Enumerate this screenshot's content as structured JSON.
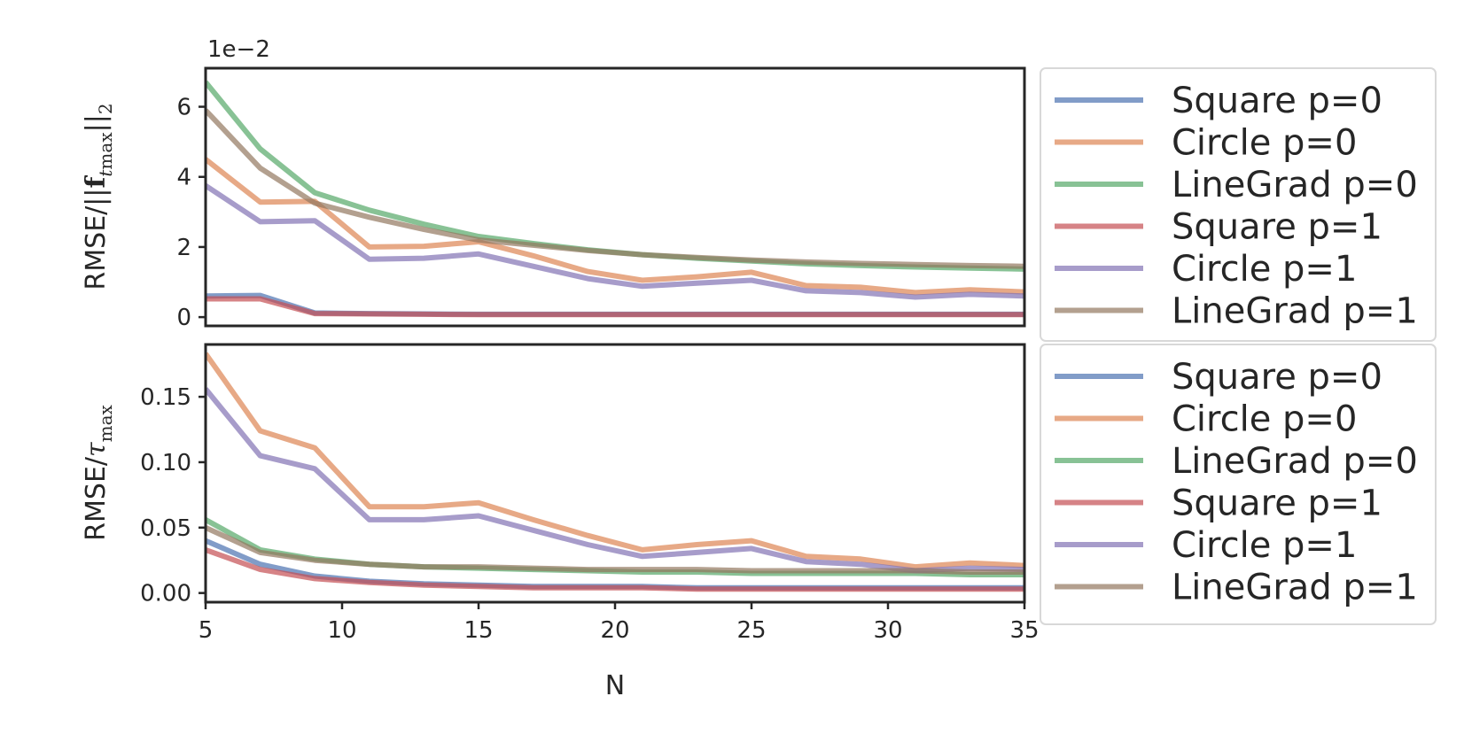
{
  "chart_data": [
    {
      "type": "line",
      "panel": "top",
      "ylabel": {
        "prefix": "RMSE/||",
        "bold": "f",
        "sub1": "t",
        "sub2": "max",
        "suffix": "||",
        "sub3": "2"
      },
      "offset_text": "1e−2",
      "xlim": [
        5,
        35
      ],
      "ylim": [
        -0.25,
        7.1
      ],
      "yticks": [
        0,
        2,
        4,
        6
      ],
      "ytick_labels": [
        "0",
        "2",
        "4",
        "6"
      ],
      "legend_position": "outside-right",
      "series": [
        {
          "name": "Square p=0",
          "color": "#4c72b0",
          "x": [
            5,
            7,
            9,
            11,
            13,
            15,
            17,
            19,
            21,
            23,
            25,
            27,
            29,
            31,
            33,
            35
          ],
          "values": [
            0.6,
            0.62,
            0.12,
            0.1,
            0.09,
            0.08,
            0.08,
            0.08,
            0.08,
            0.08,
            0.08,
            0.08,
            0.08,
            0.08,
            0.08,
            0.08
          ]
        },
        {
          "name": "Circle p=0",
          "color": "#dd8452",
          "x": [
            5,
            7,
            9,
            11,
            13,
            15,
            17,
            19,
            21,
            23,
            25,
            27,
            29,
            31,
            33,
            35
          ],
          "values": [
            4.5,
            3.28,
            3.3,
            2.0,
            2.02,
            2.15,
            1.75,
            1.3,
            1.05,
            1.15,
            1.28,
            0.9,
            0.85,
            0.7,
            0.78,
            0.72
          ]
        },
        {
          "name": "LineGrad p=0",
          "color": "#55a868",
          "x": [
            5,
            7,
            9,
            11,
            13,
            15,
            17,
            19,
            21,
            23,
            25,
            27,
            29,
            31,
            33,
            35
          ],
          "values": [
            6.7,
            4.8,
            3.55,
            3.05,
            2.65,
            2.3,
            2.1,
            1.92,
            1.78,
            1.68,
            1.6,
            1.52,
            1.47,
            1.43,
            1.4,
            1.37
          ]
        },
        {
          "name": "Square p=1",
          "color": "#c44e52",
          "x": [
            5,
            7,
            9,
            11,
            13,
            15,
            17,
            19,
            21,
            23,
            25,
            27,
            29,
            31,
            33,
            35
          ],
          "values": [
            0.52,
            0.52,
            0.1,
            0.09,
            0.08,
            0.07,
            0.07,
            0.07,
            0.07,
            0.07,
            0.07,
            0.07,
            0.07,
            0.07,
            0.07,
            0.07
          ]
        },
        {
          "name": "Circle p=1",
          "color": "#8172b3",
          "x": [
            5,
            7,
            9,
            11,
            13,
            15,
            17,
            19,
            21,
            23,
            25,
            27,
            29,
            31,
            33,
            35
          ],
          "values": [
            3.75,
            2.72,
            2.75,
            1.65,
            1.68,
            1.8,
            1.45,
            1.1,
            0.88,
            0.97,
            1.05,
            0.75,
            0.7,
            0.57,
            0.65,
            0.6
          ]
        },
        {
          "name": "LineGrad p=1",
          "color": "#937860",
          "x": [
            5,
            7,
            9,
            11,
            13,
            15,
            17,
            19,
            21,
            23,
            25,
            27,
            29,
            31,
            33,
            35
          ],
          "values": [
            5.9,
            4.25,
            3.25,
            2.85,
            2.5,
            2.2,
            2.05,
            1.9,
            1.78,
            1.7,
            1.63,
            1.57,
            1.53,
            1.5,
            1.47,
            1.45
          ]
        }
      ]
    },
    {
      "type": "line",
      "panel": "bottom",
      "ylabel": {
        "prefix": "RMSE/",
        "sym": "τ",
        "sub": "max"
      },
      "xlabel": "N",
      "xlim": [
        5,
        35
      ],
      "ylim": [
        -0.007,
        0.19
      ],
      "xticks": [
        5,
        10,
        15,
        20,
        25,
        30,
        35
      ],
      "xtick_labels": [
        "5",
        "10",
        "15",
        "20",
        "25",
        "30",
        "35"
      ],
      "yticks": [
        0.0,
        0.05,
        0.1,
        0.15
      ],
      "ytick_labels": [
        "0.00",
        "0.05",
        "0.10",
        "0.15"
      ],
      "legend_position": "outside-right",
      "series": [
        {
          "name": "Square p=0",
          "color": "#4c72b0",
          "x": [
            5,
            7,
            9,
            11,
            13,
            15,
            17,
            19,
            21,
            23,
            25,
            27,
            29,
            31,
            33,
            35
          ],
          "values": [
            0.04,
            0.022,
            0.013,
            0.009,
            0.007,
            0.006,
            0.005,
            0.005,
            0.005,
            0.004,
            0.004,
            0.004,
            0.004,
            0.004,
            0.004,
            0.004
          ]
        },
        {
          "name": "Circle p=0",
          "color": "#dd8452",
          "x": [
            5,
            7,
            9,
            11,
            13,
            15,
            17,
            19,
            21,
            23,
            25,
            27,
            29,
            31,
            33,
            35
          ],
          "values": [
            0.183,
            0.124,
            0.111,
            0.066,
            0.066,
            0.069,
            0.056,
            0.044,
            0.033,
            0.037,
            0.04,
            0.028,
            0.026,
            0.02,
            0.023,
            0.021
          ]
        },
        {
          "name": "LineGrad p=0",
          "color": "#55a868",
          "x": [
            5,
            7,
            9,
            11,
            13,
            15,
            17,
            19,
            21,
            23,
            25,
            27,
            29,
            31,
            33,
            35
          ],
          "values": [
            0.056,
            0.033,
            0.026,
            0.022,
            0.02,
            0.019,
            0.018,
            0.017,
            0.016,
            0.016,
            0.015,
            0.015,
            0.015,
            0.015,
            0.014,
            0.014
          ]
        },
        {
          "name": "Square p=1",
          "color": "#c44e52",
          "x": [
            5,
            7,
            9,
            11,
            13,
            15,
            17,
            19,
            21,
            23,
            25,
            27,
            29,
            31,
            33,
            35
          ],
          "values": [
            0.033,
            0.018,
            0.011,
            0.008,
            0.006,
            0.005,
            0.004,
            0.004,
            0.004,
            0.003,
            0.003,
            0.003,
            0.003,
            0.003,
            0.003,
            0.003
          ]
        },
        {
          "name": "Circle p=1",
          "color": "#8172b3",
          "x": [
            5,
            7,
            9,
            11,
            13,
            15,
            17,
            19,
            21,
            23,
            25,
            27,
            29,
            31,
            33,
            35
          ],
          "values": [
            0.156,
            0.105,
            0.095,
            0.056,
            0.056,
            0.059,
            0.048,
            0.037,
            0.028,
            0.031,
            0.034,
            0.024,
            0.022,
            0.017,
            0.019,
            0.018
          ]
        },
        {
          "name": "LineGrad p=1",
          "color": "#937860",
          "x": [
            5,
            7,
            9,
            11,
            13,
            15,
            17,
            19,
            21,
            23,
            25,
            27,
            29,
            31,
            33,
            35
          ],
          "values": [
            0.05,
            0.031,
            0.025,
            0.022,
            0.02,
            0.02,
            0.019,
            0.018,
            0.018,
            0.018,
            0.017,
            0.017,
            0.017,
            0.017,
            0.016,
            0.016
          ]
        }
      ]
    }
  ]
}
